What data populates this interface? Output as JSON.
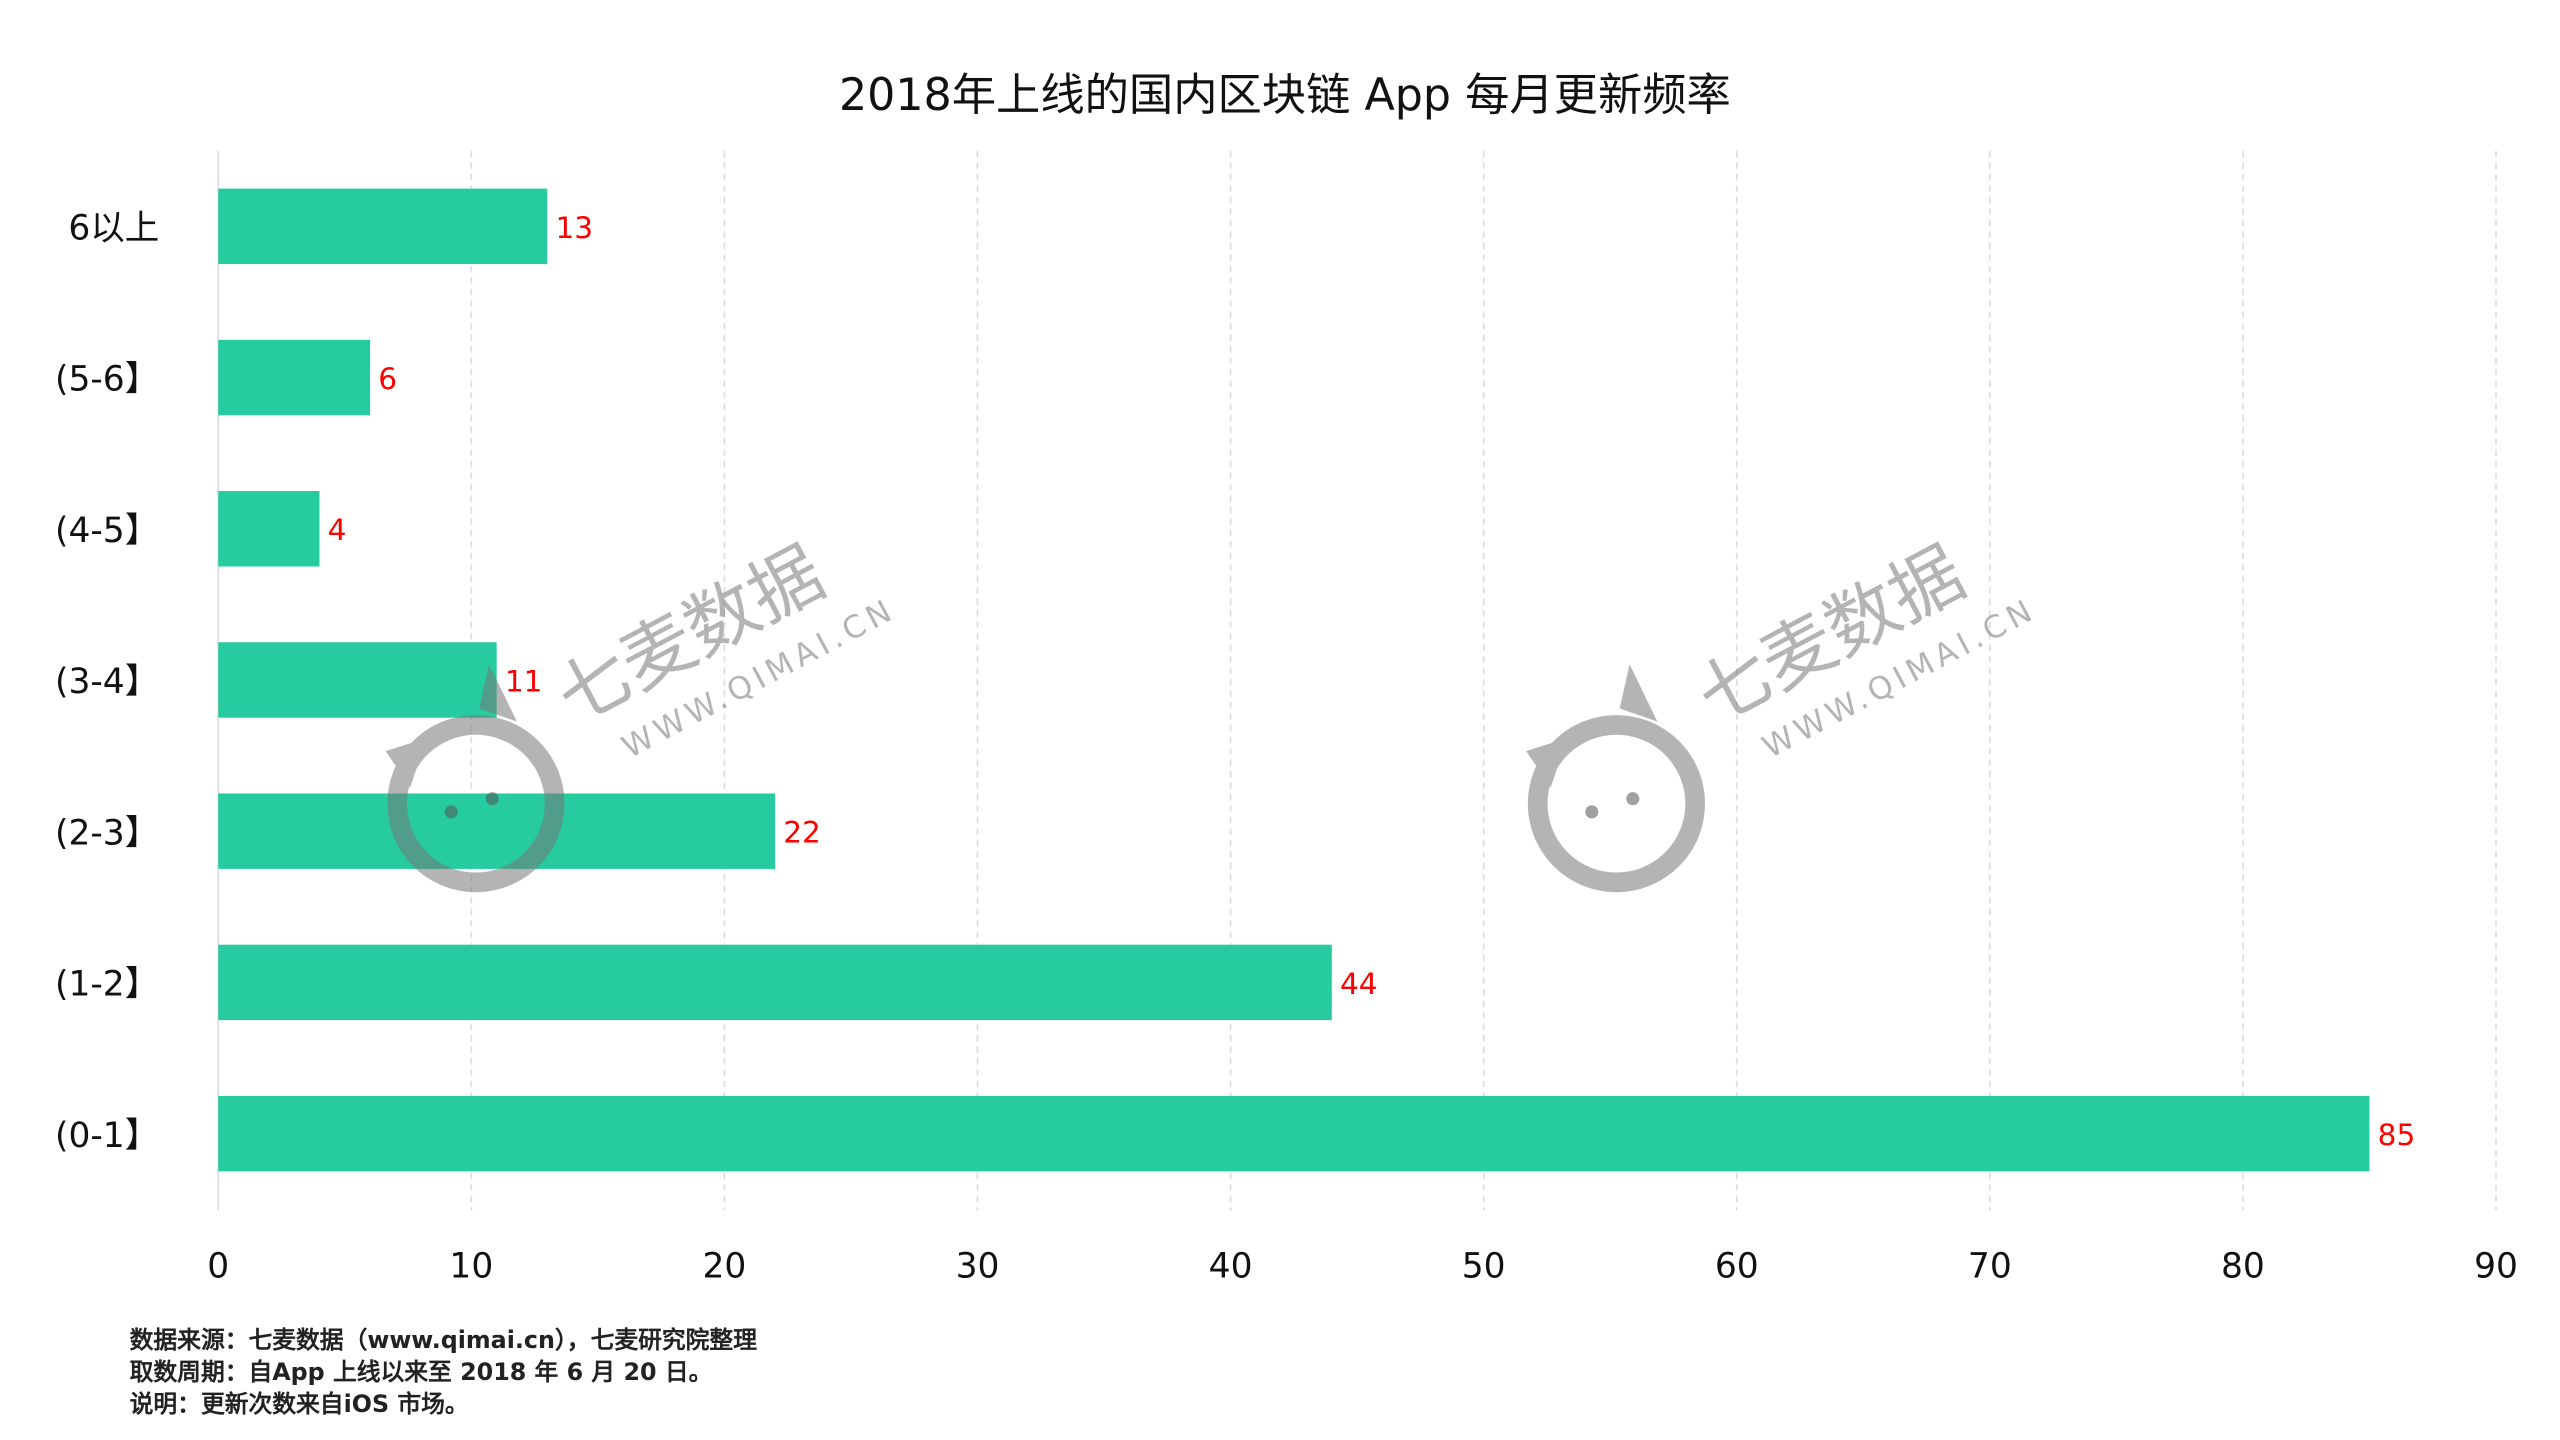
{
  "chart_data": {
    "type": "bar",
    "orientation": "horizontal",
    "title": "2018年上线的国内区块链 App 每月更新频率",
    "categories": [
      "6以上",
      "(5-6】",
      "(4-5】",
      "(3-4】",
      "(2-3】",
      "(1-2】",
      "(0-1】"
    ],
    "values": [
      13,
      6,
      4,
      11,
      22,
      44,
      85
    ],
    "xlim": [
      0,
      90
    ],
    "xticks": [
      0,
      10,
      20,
      30,
      40,
      50,
      60,
      70,
      80,
      90
    ],
    "grid": "vertical dashed",
    "legend": "none",
    "colors": {
      "bar": "#26CCA0",
      "data_label": "#FF0000",
      "grid": "#DDDDDD",
      "text": "#111111"
    }
  },
  "watermark": {
    "brand": "七麦数据",
    "url": "WWW.QIMAI.CN"
  },
  "footnotes": [
    "数据来源：七麦数据（www.qimai.cn），七麦研究院整理",
    "取数周期：自App 上线以来至 2018 年 6 月 20 日。",
    "说明：更新次数来自iOS 市场。"
  ]
}
